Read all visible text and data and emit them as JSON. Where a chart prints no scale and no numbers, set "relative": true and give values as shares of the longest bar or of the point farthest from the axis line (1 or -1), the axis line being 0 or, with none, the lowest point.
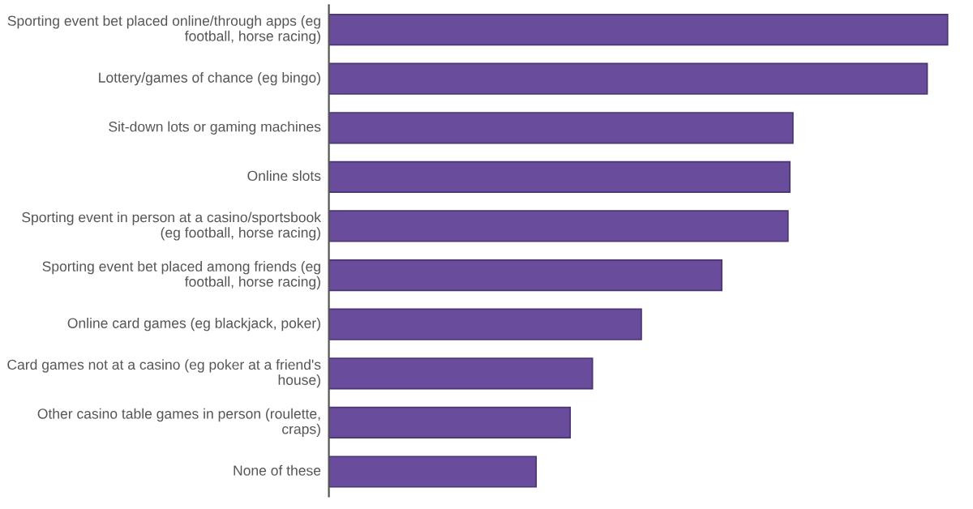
{
  "chart_data": {
    "type": "bar",
    "orientation": "horizontal",
    "relative": true,
    "categories": [
      "Sporting event bet placed online/through apps (eg football, horse racing)",
      "Lottery/games of chance (eg bingo)",
      "Sit-down lots or gaming machines",
      "Online slots",
      "Sporting event in person at a casino/sportsbook (eg football, horse racing)",
      "Sporting event bet placed among friends (eg football, horse racing)",
      "Online card games (eg blackjack, poker)",
      "Card games not at a casino (eg poker at a friend's house)",
      "Other casino table games in person (roulette, craps)",
      "None of these"
    ],
    "values": [
      1,
      0.967,
      0.75,
      0.745,
      0.742,
      0.635,
      0.505,
      0.426,
      0.39,
      0.335
    ],
    "color": "#6a4c9c"
  }
}
